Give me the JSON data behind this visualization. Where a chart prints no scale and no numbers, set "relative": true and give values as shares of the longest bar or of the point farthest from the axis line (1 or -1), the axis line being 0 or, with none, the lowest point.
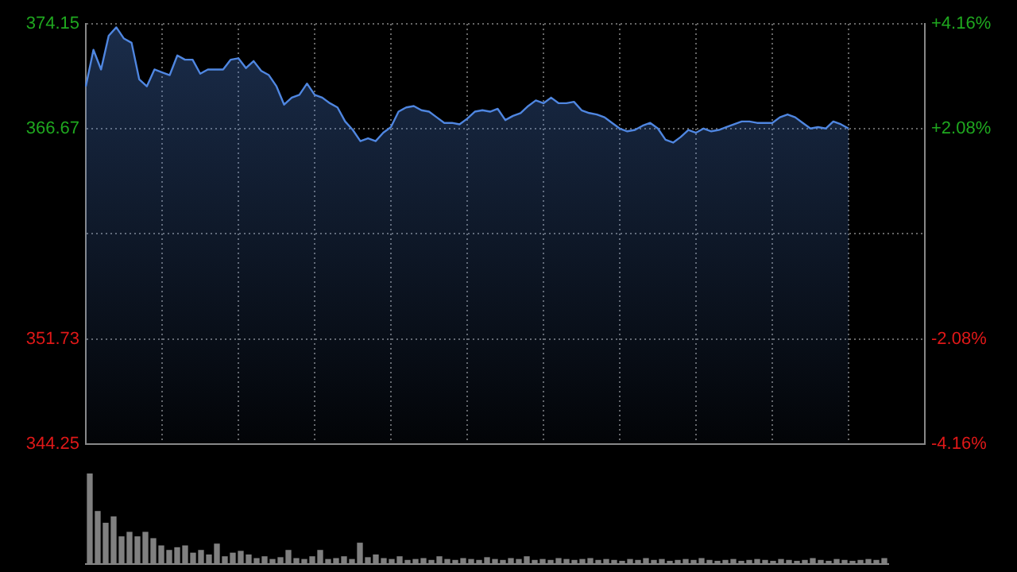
{
  "chart_data": [
    {
      "type": "area",
      "categories": [
        null,
        null,
        null,
        null,
        null,
        null,
        null,
        null,
        null,
        null,
        null,
        null,
        null,
        null,
        null,
        null,
        null,
        null,
        null,
        null,
        null,
        null,
        null,
        null,
        null,
        null,
        null,
        null,
        null,
        null,
        null,
        null,
        null,
        null,
        null,
        null,
        null,
        null,
        null,
        null,
        null,
        null,
        null,
        null,
        null,
        null,
        null,
        null,
        null,
        null,
        null,
        null,
        null,
        null,
        null,
        null,
        null,
        null,
        null,
        null,
        null,
        null,
        null,
        null,
        null,
        null,
        null,
        null,
        null,
        null,
        null,
        null,
        null,
        null,
        null,
        null,
        null,
        null,
        null,
        null,
        null,
        null,
        null,
        null,
        null,
        null,
        null,
        null,
        null,
        null,
        null,
        null,
        null,
        null,
        null,
        null,
        null,
        null,
        null,
        null,
        null,
        null,
        null,
        null,
        null,
        null,
        null,
        null,
        null,
        null,
        null
      ],
      "series": [
        {
          "color": "#4f86e0",
          "values": [
            369.7,
            372.3,
            370.9,
            373.3,
            373.9,
            373.1,
            372.8,
            370.2,
            369.7,
            370.9,
            370.7,
            370.5,
            371.9,
            371.6,
            371.6,
            370.6,
            370.9,
            370.9,
            370.9,
            371.6,
            371.7,
            371.0,
            371.5,
            370.8,
            370.5,
            369.7,
            368.4,
            368.9,
            369.1,
            369.9,
            369.1,
            368.9,
            368.5,
            368.2,
            367.2,
            366.6,
            365.8,
            366.0,
            365.8,
            366.4,
            366.8,
            367.9,
            368.2,
            368.3,
            368.0,
            367.9,
            367.5,
            367.1,
            367.1,
            367.0,
            367.4,
            367.9,
            368.0,
            367.9,
            368.1,
            367.3,
            367.6,
            367.8,
            368.3,
            368.7,
            368.5,
            368.9,
            368.5,
            368.5,
            368.6,
            368.0,
            367.8,
            367.7,
            367.5,
            367.1,
            366.7,
            366.5,
            366.6,
            366.9,
            367.1,
            366.7,
            365.9,
            365.7,
            366.1,
            366.6,
            366.4,
            366.7,
            366.5,
            366.6,
            366.8,
            367.0,
            367.2,
            367.2,
            367.1,
            367.1,
            367.1,
            367.5,
            367.7,
            367.5,
            367.1,
            366.7,
            366.8,
            366.7,
            367.2,
            367.0,
            366.7,
            null,
            null,
            null,
            null,
            null,
            null,
            null,
            null,
            null,
            null
          ]
        }
      ],
      "ylim": [
        344.25,
        374.15
      ],
      "yticks": [
        374.15,
        366.67,
        {
          "value": 359.2,
          "label": null
        },
        351.73,
        344.25
      ],
      "y2lim": [
        -4.16,
        4.16
      ],
      "y2ticks": [
        {
          "value": 4.16,
          "label": "+4.16%"
        },
        {
          "value": 2.08,
          "label": "+2.08%"
        },
        {
          "value": 0,
          "label": null
        },
        {
          "value": -2.08,
          "label": "-2.08%"
        },
        {
          "value": -4.16,
          "label": "-4.16%"
        }
      ],
      "grid": true,
      "legend": false,
      "tick_labels": "y"
    },
    {
      "type": "bar",
      "categories": [
        null,
        null,
        null,
        null,
        null,
        null,
        null,
        null,
        null,
        null,
        null,
        null,
        null,
        null,
        null,
        null,
        null,
        null,
        null,
        null,
        null,
        null,
        null,
        null,
        null,
        null,
        null,
        null,
        null,
        null,
        null,
        null,
        null,
        null,
        null,
        null,
        null,
        null,
        null,
        null,
        null,
        null,
        null,
        null,
        null,
        null,
        null,
        null,
        null,
        null,
        null,
        null,
        null,
        null,
        null,
        null,
        null,
        null,
        null,
        null,
        null,
        null,
        null,
        null,
        null,
        null,
        null,
        null,
        null,
        null,
        null,
        null,
        null,
        null,
        null,
        null,
        null,
        null,
        null,
        null,
        null,
        null,
        null,
        null,
        null,
        null,
        null,
        null,
        null,
        null,
        null,
        null,
        null,
        null,
        null,
        null,
        null,
        null,
        null,
        null,
        null
      ],
      "values": [
        1,
        0.58,
        0.45,
        0.52,
        0.3,
        0.35,
        0.3,
        0.35,
        0.28,
        0.2,
        0.15,
        0.18,
        0.2,
        0.12,
        0.15,
        0.1,
        0.22,
        0.08,
        0.12,
        0.14,
        0.1,
        0.06,
        0.08,
        0.05,
        0.07,
        0.15,
        0.06,
        0.05,
        0.08,
        0.15,
        0.05,
        0.06,
        0.08,
        0.05,
        0.23,
        0.07,
        0.1,
        0.06,
        0.05,
        0.08,
        0.04,
        0.05,
        0.06,
        0.04,
        0.08,
        0.05,
        0.04,
        0.06,
        0.05,
        0.04,
        0.07,
        0.05,
        0.04,
        0.06,
        0.05,
        0.08,
        0.04,
        0.05,
        0.04,
        0.06,
        0.05,
        0.04,
        0.05,
        0.06,
        0.04,
        0.05,
        0.04,
        0.03,
        0.05,
        0.04,
        0.06,
        0.04,
        0.05,
        0.03,
        0.04,
        0.05,
        0.04,
        0.06,
        0.04,
        0.03,
        0.04,
        0.05,
        0.03,
        0.04,
        0.05,
        0.04,
        0.03,
        0.05,
        0.04,
        0.03,
        0.04,
        0.06,
        0.04,
        0.03,
        0.05,
        0.04,
        0.03,
        0.04,
        0.05,
        0.04,
        0.06
      ],
      "color": "#808080",
      "relative": true,
      "tick_labels": false,
      "legend": false
    }
  ]
}
